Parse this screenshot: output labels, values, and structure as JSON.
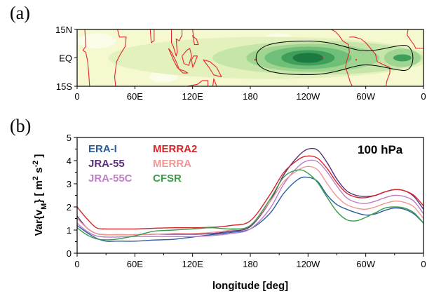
{
  "figure": {
    "panel_a_label": "(a)",
    "panel_b_label": "(b)"
  },
  "colors": {
    "map_background": "#f6f9cf",
    "coastline": "#e8262a",
    "contour_line": "#000000",
    "shade_levels": [
      "#f6f9cf",
      "#e3f1bd",
      "#c6e5a8",
      "#9fd590",
      "#6fbf78",
      "#3e9e5a",
      "#1c7a40"
    ]
  },
  "chart_data": [
    {
      "id": "a",
      "type": "heatmap",
      "title": "",
      "x_ticks": [
        "0",
        "60E",
        "120E",
        "180",
        "120W",
        "60W",
        "0"
      ],
      "x_tick_values": [
        0,
        60,
        120,
        180,
        240,
        300,
        360
      ],
      "y_ticks": [
        "15N",
        "EQ",
        "15S"
      ],
      "y_tick_values": [
        15,
        0,
        -15
      ],
      "xlim": [
        0,
        360
      ],
      "ylim": [
        -15,
        15
      ],
      "features": [
        {
          "name": "primary maximum",
          "lon": 240,
          "lat": 0,
          "level": 6
        },
        {
          "name": "secondary maximum",
          "lon": 338,
          "lat": 0,
          "level": 4
        },
        {
          "name": "enclosing contour",
          "lon_range": [
            186,
            352
          ],
          "lat_range": [
            -9,
            9
          ]
        }
      ]
    },
    {
      "id": "b",
      "type": "line",
      "annotation": "100 hPa",
      "xlabel": "longitude [deg]",
      "ylabel": "Var{v_M} [ m² s⁻² ]",
      "ylabel_parts": {
        "main": "Var{v",
        "sub": "M",
        "close": "}",
        "units_open": "[ m",
        "sup1": "2",
        "mid": " s",
        "sup2": "-2",
        "units_close": " ]"
      },
      "x_ticks": [
        "0",
        "60E",
        "120E",
        "180",
        "120W",
        "60W",
        "0"
      ],
      "x_tick_values": [
        0,
        60,
        120,
        180,
        240,
        300,
        360
      ],
      "y_ticks": [
        "0",
        "1",
        "2",
        "3",
        "4",
        "5"
      ],
      "xlim": [
        0,
        360
      ],
      "ylim": [
        0,
        5
      ],
      "legend_position": "top-left",
      "x": [
        0,
        10,
        20,
        30,
        40,
        60,
        80,
        100,
        120,
        140,
        160,
        180,
        200,
        215,
        230,
        240,
        250,
        260,
        270,
        280,
        290,
        300,
        310,
        320,
        330,
        340,
        350,
        360
      ],
      "series": [
        {
          "name": "ERA-I",
          "color": "#2b5e9c",
          "values": [
            1.2,
            0.9,
            0.65,
            0.52,
            0.52,
            0.52,
            0.57,
            0.6,
            0.7,
            0.8,
            0.9,
            1.05,
            1.7,
            2.6,
            3.2,
            3.28,
            3.1,
            2.5,
            2.1,
            1.9,
            1.75,
            1.65,
            1.7,
            1.85,
            1.95,
            1.9,
            1.7,
            1.3
          ]
        },
        {
          "name": "JRA-55",
          "color": "#5b2f7c",
          "values": [
            1.6,
            1.1,
            0.85,
            0.8,
            0.8,
            0.8,
            0.82,
            0.82,
            0.82,
            0.85,
            0.95,
            1.15,
            2.2,
            3.4,
            4.2,
            4.5,
            4.45,
            3.9,
            3.2,
            2.7,
            2.5,
            2.45,
            2.5,
            2.65,
            2.75,
            2.7,
            2.45,
            1.9
          ]
        },
        {
          "name": "JRA-55C",
          "color": "#c07dc8",
          "values": [
            1.3,
            0.95,
            0.75,
            0.7,
            0.7,
            0.72,
            0.72,
            0.72,
            0.72,
            0.76,
            0.85,
            1.05,
            1.9,
            3.0,
            3.75,
            4.0,
            3.95,
            3.5,
            2.9,
            2.4,
            2.2,
            2.15,
            2.25,
            2.4,
            2.5,
            2.45,
            2.25,
            1.7
          ]
        },
        {
          "name": "MERRA2",
          "color": "#d6242b",
          "values": [
            2.0,
            1.5,
            1.1,
            1.05,
            1.05,
            1.05,
            1.08,
            1.1,
            1.1,
            1.12,
            1.2,
            1.4,
            2.5,
            3.5,
            4.05,
            4.2,
            4.1,
            3.65,
            3.05,
            2.6,
            2.42,
            2.4,
            2.5,
            2.65,
            2.75,
            2.7,
            2.5,
            2.05
          ]
        },
        {
          "name": "MERRA",
          "color": "#f19696",
          "values": [
            1.5,
            1.1,
            0.85,
            0.8,
            0.8,
            0.8,
            0.82,
            0.85,
            0.85,
            0.9,
            1.0,
            1.2,
            2.2,
            3.1,
            3.6,
            3.75,
            3.6,
            3.0,
            2.45,
            2.1,
            1.95,
            1.9,
            2.0,
            2.15,
            2.25,
            2.2,
            2.0,
            1.5
          ]
        },
        {
          "name": "CFSR",
          "color": "#3a9c4a",
          "values": [
            1.1,
            0.8,
            0.62,
            0.58,
            0.6,
            0.75,
            0.95,
            1.0,
            1.05,
            1.1,
            1.05,
            1.2,
            2.3,
            3.3,
            3.6,
            3.45,
            3.05,
            2.4,
            1.8,
            1.45,
            1.4,
            1.55,
            1.75,
            1.95,
            2.0,
            1.95,
            1.75,
            1.3
          ]
        }
      ]
    }
  ]
}
